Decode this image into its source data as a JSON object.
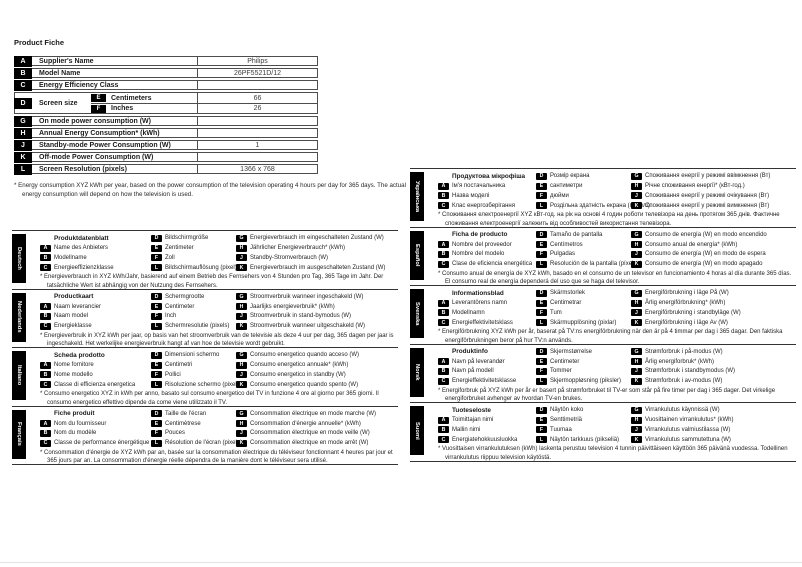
{
  "page": {
    "title": "Product Fiche",
    "text_color": "#1a1a1a",
    "badge_color": "#000000"
  },
  "product_table": {
    "rows": [
      {
        "key": "A",
        "label": "Supplier's Name",
        "value": "Philips"
      },
      {
        "key": "B",
        "label": "Model Name",
        "value": "26PF5521D/12"
      },
      {
        "key": "C",
        "label": "Energy Efficiency Class",
        "value": ""
      },
      {
        "key": "D",
        "label": "Screen size",
        "sub": [
          {
            "key": "E",
            "label": "Centimeters",
            "value": "66"
          },
          {
            "key": "F",
            "label": "Inches",
            "value": "26"
          }
        ]
      },
      {
        "key": "G",
        "label": "On mode power consumption (W)",
        "value": ""
      },
      {
        "key": "H",
        "label": "Annual Energy Consumption* (kWh)",
        "value": ""
      },
      {
        "key": "J",
        "label": "Standby-mode Power Consumption (W)",
        "value": "1"
      },
      {
        "key": "K",
        "label": "Off-mode Power Consumption (W)",
        "value": ""
      },
      {
        "key": "L",
        "label": "Screen Resolution (pixels)",
        "value": "1366 x 768"
      }
    ],
    "footnote": "* Energy consumption XYZ kWh per year, based on the power consumption of the television operating 4 hours per day for 365 days. The actual energy consumption will depend on how the television is used."
  },
  "sections": {
    "left": [
      {
        "language": "Deutsch",
        "title": "Produktdatenblatt",
        "items_col1": [
          {
            "key": "A",
            "label": "Name des Anbieters"
          },
          {
            "key": "B",
            "label": "Modellname"
          },
          {
            "key": "C",
            "label": "Energieeffizienzklasse"
          }
        ],
        "items_col2": [
          {
            "key": "D",
            "label": "Bildschirmgröße"
          },
          {
            "key": "E",
            "label": "Zentimeter"
          },
          {
            "key": "F",
            "label": "Zoll"
          },
          {
            "key": "L",
            "label": "Bildschirmauflösung (pixel)"
          }
        ],
        "items_col3": [
          {
            "key": "G",
            "label": "Energieverbrauch im eingeschalteten Zustand (W)"
          },
          {
            "key": "H",
            "label": "Jährlicher Energieverbrauch* (kWh)"
          },
          {
            "key": "J",
            "label": "Standby-Stromverbrauch (W)"
          },
          {
            "key": "K",
            "label": "Energieverbrauch im ausgeschalteten Zustand (W)"
          }
        ],
        "footnote": "* Energieverbrauch in XYZ kWh/Jahr, basierend auf einem Betrieb des Fernsehers von 4 Stunden pro Tag, 365 Tage im Jahr. Der tatsächliche Wert ist abhängig von der Nutzung des Fernsehers."
      },
      {
        "language": "Nederlands",
        "title": "Productkaart",
        "items_col1": [
          {
            "key": "A",
            "label": "Naam leverancier"
          },
          {
            "key": "B",
            "label": "Naam model"
          },
          {
            "key": "C",
            "label": "Energieklasse"
          }
        ],
        "items_col2": [
          {
            "key": "D",
            "label": "Schermgrootte"
          },
          {
            "key": "E",
            "label": "Centimeter"
          },
          {
            "key": "F",
            "label": "Inch"
          },
          {
            "key": "L",
            "label": "Schermresolutie (pixels)"
          }
        ],
        "items_col3": [
          {
            "key": "G",
            "label": "Stroomverbruik wanneer ingeschakeld (W)"
          },
          {
            "key": "H",
            "label": "Jaarlijks energieverbruik* (kWh)"
          },
          {
            "key": "J",
            "label": "Stroomverbruik in stand-bymodus (W)"
          },
          {
            "key": "K",
            "label": "Stroomverbruik wanneer uitgeschakeld (W)"
          }
        ],
        "footnote": "* Energieverbruik in XYZ kWh per jaar, op basis van het stroomverbruik van de televisie als deze 4 uur per dag, 365 dagen per jaar is ingeschakeld. Het werkelijke energieverbruik hangt af van hoe de televisie wordt gebruikt."
      },
      {
        "language": "Italiano",
        "title": "Scheda prodotto",
        "items_col1": [
          {
            "key": "A",
            "label": "Nome fornitore"
          },
          {
            "key": "B",
            "label": "Nome modello"
          },
          {
            "key": "C",
            "label": "Classe di efficienza energetica"
          }
        ],
        "items_col2": [
          {
            "key": "D",
            "label": "Dimensioni schermo"
          },
          {
            "key": "E",
            "label": "Centimetri"
          },
          {
            "key": "F",
            "label": "Pollici"
          },
          {
            "key": "L",
            "label": "Risoluzione schermo (pixel)"
          }
        ],
        "items_col3": [
          {
            "key": "G",
            "label": "Consumo energetico quando acceso (W)"
          },
          {
            "key": "H",
            "label": "Consumo energetico annuale* (kWh)"
          },
          {
            "key": "J",
            "label": "Consumo energetico in standby (W)"
          },
          {
            "key": "K",
            "label": "Consumo energetico quando spento (W)"
          }
        ],
        "footnote": "* Consumo energetico XYZ in kWh per anno, basato sul consumo energetico del TV in funzione 4 ore al giorno per 365 giorni. Il consumo energetico effettivo dipende da come viene utilizzato il TV."
      },
      {
        "language": "Français",
        "title": "Fiche produit",
        "items_col1": [
          {
            "key": "A",
            "label": "Nom du fournisseur"
          },
          {
            "key": "B",
            "label": "Nom du modèle"
          },
          {
            "key": "C",
            "label": "Classe de performance énergétique"
          }
        ],
        "items_col2": [
          {
            "key": "D",
            "label": "Taille de l'écran"
          },
          {
            "key": "E",
            "label": "Centimètrese"
          },
          {
            "key": "F",
            "label": "Pouces"
          },
          {
            "key": "L",
            "label": "Résolution de l'écran (pixels)"
          }
        ],
        "items_col3": [
          {
            "key": "G",
            "label": "Consommation électrique en mode marche (W)"
          },
          {
            "key": "H",
            "label": "Consommation d'énergie annuelle* (kWh)"
          },
          {
            "key": "J",
            "label": "Consommation électrique en mode veille (W)"
          },
          {
            "key": "K",
            "label": "Consommation électrique en mode arrêt (W)"
          }
        ],
        "footnote": "* Consommation d'énergie de XYZ kWh par an, basée sur la consommation électrique du téléviseur fonctionnant 4 heures par jour et 365 jours par an. La consommation d'énergie réelle dépendra de la manière dont le téléviseur sera utilisé."
      }
    ],
    "right": [
      {
        "language": "Українська",
        "title": "Продуктова мікрофіша",
        "items_col1": [
          {
            "key": "A",
            "label": "Ім'я постачальника"
          },
          {
            "key": "B",
            "label": "Назва моделі"
          },
          {
            "key": "C",
            "label": "Клас енергозберігання"
          }
        ],
        "items_col2": [
          {
            "key": "D",
            "label": "Розмір екрана"
          },
          {
            "key": "E",
            "label": "сантиметри"
          },
          {
            "key": "F",
            "label": "дюйми"
          },
          {
            "key": "L",
            "label": "Роздільна здатність екрана (пікселі)"
          }
        ],
        "items_col3": [
          {
            "key": "G",
            "label": "Споживання енергії у режимі ввімкнення (Вт)"
          },
          {
            "key": "H",
            "label": "Річне споживання енергії* (кВт-год.)"
          },
          {
            "key": "J",
            "label": "Споживання енергії у режимі очікування (Вт)"
          },
          {
            "key": "K",
            "label": "Споживання енергії у режимі вимкнення (Вт)"
          }
        ],
        "footnote": "* Споживання електроенергії XYZ кВт-год. на рік на основі 4 годин роботи телевізора на день протягом 365 днів. Фактичне споживання електроенергії залежить від особливостей використання телевізора."
      },
      {
        "language": "Español",
        "title": "Ficha de producto",
        "items_col1": [
          {
            "key": "A",
            "label": "Nombre del proveedor"
          },
          {
            "key": "B",
            "label": "Nombre del modelo"
          },
          {
            "key": "C",
            "label": "Clase de eficiencia energética"
          }
        ],
        "items_col2": [
          {
            "key": "D",
            "label": "Tamaño de pantalla"
          },
          {
            "key": "E",
            "label": "Centímetros"
          },
          {
            "key": "F",
            "label": "Pulgadas"
          },
          {
            "key": "L",
            "label": "Resolución de la pantalla (píxeles)"
          }
        ],
        "items_col3": [
          {
            "key": "G",
            "label": "Consumo de energía (W) en modo encendido"
          },
          {
            "key": "H",
            "label": "Consumo anual de energía* (kWh)"
          },
          {
            "key": "J",
            "label": "Consumo de energía (W) en modo de espera"
          },
          {
            "key": "K",
            "label": "Consumo de energía (W) en modo apagado"
          }
        ],
        "footnote": "* Consumo anual de energía de XYZ kWh, basado en el consumo de un televisor en funcionamiento 4 horas al día durante 365 días. El consumo real de energía dependerá del uso que se haga del televisor."
      },
      {
        "language": "Svenska",
        "title": "Informationsblad",
        "items_col1": [
          {
            "key": "A",
            "label": "Leverantörens namn"
          },
          {
            "key": "B",
            "label": "Modellnamn"
          },
          {
            "key": "C",
            "label": "Energieffektivitetsklass"
          }
        ],
        "items_col2": [
          {
            "key": "D",
            "label": "Skärmstorlek"
          },
          {
            "key": "E",
            "label": "Centimetrar"
          },
          {
            "key": "F",
            "label": "Tum"
          },
          {
            "key": "L",
            "label": "Skärmupplösning (pixlar)"
          }
        ],
        "items_col3": [
          {
            "key": "G",
            "label": "Energiförbrukning i läge På (W)"
          },
          {
            "key": "H",
            "label": "Årlig energiförbrukning* (kWh)"
          },
          {
            "key": "J",
            "label": "Energiförbrukning i standbyläge (W)"
          },
          {
            "key": "K",
            "label": "Energiförbrukning i läge Av (W)"
          }
        ],
        "footnote": "* Energiförbrukning XYZ kWh per år, baserat på TV:ns energiförbrukning när den är på 4 timmar per dag i 365 dagar. Den faktiska energiförbrukningen beror på hur TV:n används."
      },
      {
        "language": "Norsk",
        "title": "Produktinfo",
        "items_col1": [
          {
            "key": "A",
            "label": "Navn på leverandør"
          },
          {
            "key": "B",
            "label": "Navn på modell"
          },
          {
            "key": "C",
            "label": "Energieffektivitetsklasse"
          }
        ],
        "items_col2": [
          {
            "key": "D",
            "label": "Skjermstørrelse"
          },
          {
            "key": "E",
            "label": "Centimeter"
          },
          {
            "key": "F",
            "label": "Tommer"
          },
          {
            "key": "L",
            "label": "Skjermoppløsning (piksler)"
          }
        ],
        "items_col3": [
          {
            "key": "G",
            "label": "Strømforbruk i på-modus (W)"
          },
          {
            "key": "H",
            "label": "Årlig energiforbruk* (kWh)"
          },
          {
            "key": "J",
            "label": "Strømforbruk i standbymodus (W)"
          },
          {
            "key": "K",
            "label": "Strømforbruk i av-modus (W)"
          }
        ],
        "footnote": "* Energiforbruk på XYZ kWh per år er basert på strømforbruket til TV-er som står på fire timer per dag i 365 dager. Det virkelige energiforbruket avhenger av hvordan TV-en brukes."
      },
      {
        "language": "Suomi",
        "title": "Tuoteseloste",
        "items_col1": [
          {
            "key": "A",
            "label": "Toimittajan nimi"
          },
          {
            "key": "B",
            "label": "Mallin nimi"
          },
          {
            "key": "C",
            "label": "Energiatehokkuusluokka"
          }
        ],
        "items_col2": [
          {
            "key": "D",
            "label": "Näytön koko"
          },
          {
            "key": "E",
            "label": "Senttimetriä"
          },
          {
            "key": "F",
            "label": "Tuumaa"
          },
          {
            "key": "L",
            "label": "Näytön tarkkuus (pikseliä)"
          }
        ],
        "items_col3": [
          {
            "key": "G",
            "label": "Virrankulutus käynnissä (W)"
          },
          {
            "key": "H",
            "label": "Vuosittainen virrankulutus* (kWh)"
          },
          {
            "key": "J",
            "label": "Virrankulutus valmiustilassa (W)"
          },
          {
            "key": "K",
            "label": "Virrankulutus sammutettuna (W)"
          }
        ],
        "footnote": "* Vuosittaisen virrankulutuksen (kWh) laskenta perustuu television 4 tunnin päivittäiseen käyttöön 365 päivänä vuodessa. Todellinen virrankulutus riippuu television käytöstä."
      }
    ]
  }
}
